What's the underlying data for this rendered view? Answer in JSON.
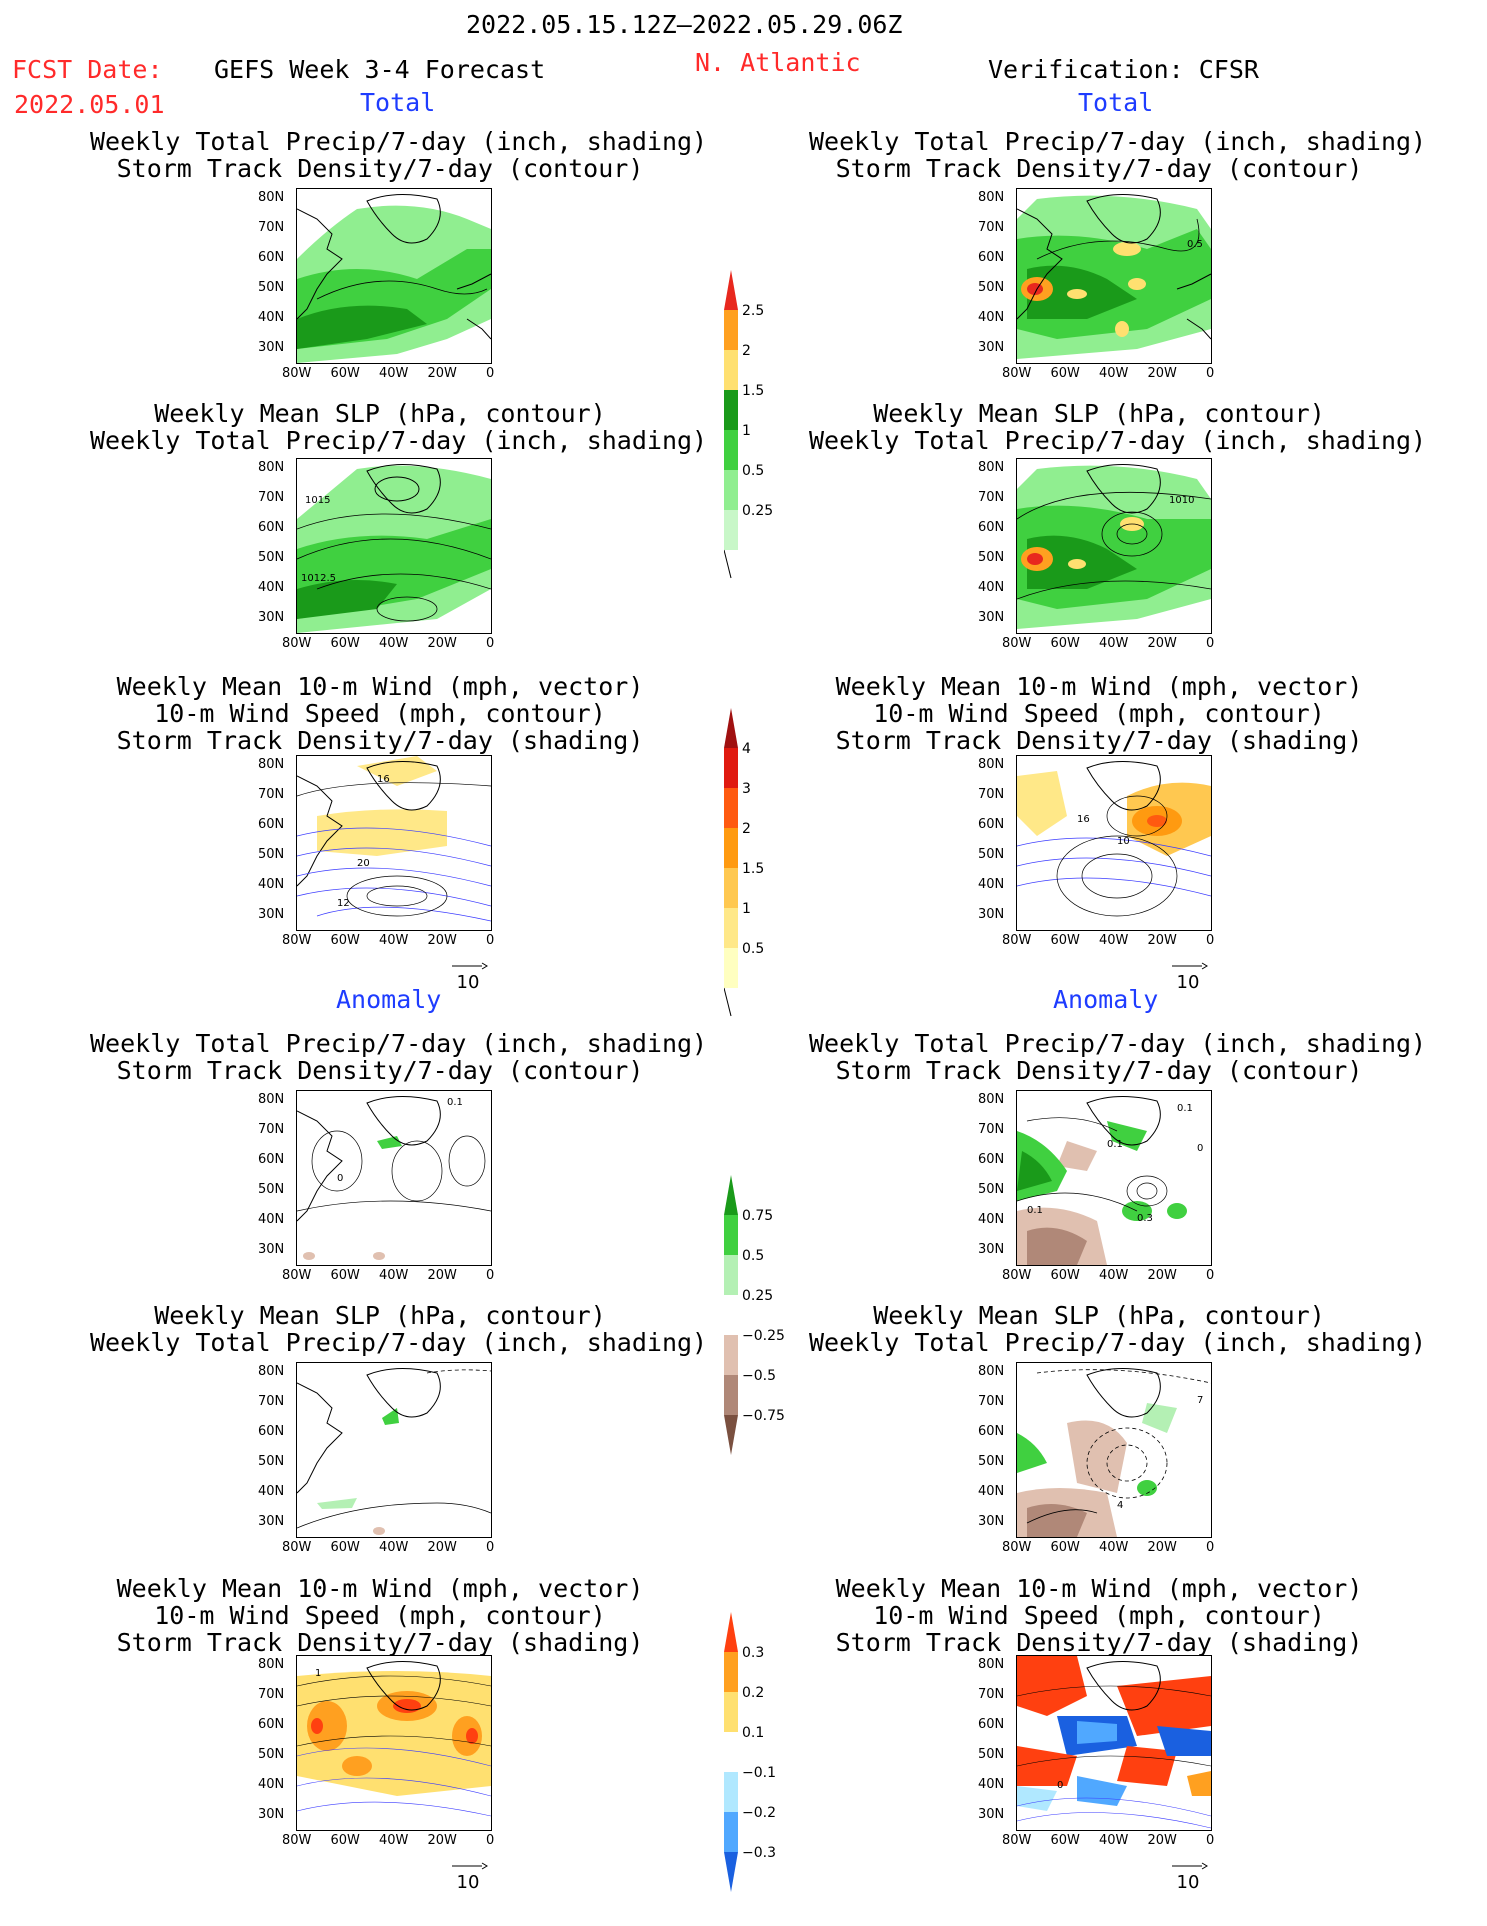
{
  "header": {
    "period": "2022.05.15.12Z–2022.05.29.06Z",
    "fcst_label": "FCST Date:",
    "fcst_date": "2022.05.01",
    "forecast": "GEFS Week 3-4 Forecast",
    "region": "N. Atlantic",
    "verification": "Verification: CFSR",
    "total_label": "Total",
    "anomaly_label": "Anomaly"
  },
  "axes": {
    "lat_ticks": [
      "80N",
      "70N",
      "60N",
      "50N",
      "40N",
      "30N"
    ],
    "lon_ticks": [
      "80W",
      "60W",
      "40W",
      "20W",
      "0"
    ]
  },
  "vector_ref": "10",
  "titles": {
    "precip_storm": [
      "Weekly Total Precip/7-day (inch, shading)",
      "Storm Track Density/7-day (contour)"
    ],
    "slp_precip": [
      "Weekly Mean SLP (hPa, contour)",
      "Weekly Total Precip/7-day (inch, shading)"
    ],
    "wind_storm": [
      "Weekly Mean 10-m Wind (mph, vector)",
      "10-m Wind Speed (mph, contour)",
      "Storm Track Density/7-day (shading)"
    ]
  },
  "contour_labels": {
    "gefs_total_slp": [
      "1015",
      "1012.5"
    ],
    "cfsr_total_precip": [
      "0.5"
    ],
    "cfsr_total_slp": [
      "1010"
    ],
    "gefs_total_wind": [
      "16",
      "20",
      "12"
    ],
    "cfsr_total_wind": [
      "16",
      "10"
    ],
    "gefs_anom_precip": [
      "0.1",
      "0"
    ],
    "cfsr_anom_precip": [
      "0.1",
      "0.1",
      "0",
      "0.3",
      "0.1"
    ],
    "cfsr_anom_slp": [
      "7",
      "4"
    ],
    "gefs_anom_wind": [
      "1"
    ],
    "cfsr_anom_wind": [
      "0"
    ]
  },
  "colorbars": {
    "precip_total": {
      "labels": [
        "2.5",
        "2",
        "1.5",
        "1",
        "0.5",
        "0.25"
      ],
      "colors": [
        "#e8281e",
        "#ffa020",
        "#ffe070",
        "#1a9a1a",
        "#40d040",
        "#90ee90",
        "#c8f7c8"
      ]
    },
    "storm_total": {
      "labels": [
        "4",
        "3",
        "2",
        "1.5",
        "1",
        "0.5"
      ],
      "colors": [
        "#a01010",
        "#e01a10",
        "#ff5a10",
        "#ff9a10",
        "#ffc850",
        "#ffe888",
        "#ffffc0"
      ]
    },
    "precip_anom": {
      "labels": [
        "0.75",
        "0.5",
        "0.25",
        "−0.25",
        "−0.5",
        "−0.75"
      ],
      "colors": [
        "#1a9a1a",
        "#40d040",
        "#b4f0b4",
        "#ffffff",
        "#e0c0b0",
        "#b08878",
        "#7a5040"
      ]
    },
    "storm_anom": {
      "labels": [
        "0.3",
        "0.2",
        "0.1",
        "−0.1",
        "−0.2",
        "−0.3"
      ],
      "colors": [
        "#ff4010",
        "#ffa020",
        "#ffe070",
        "#ffffff",
        "#b0e8ff",
        "#50a8ff",
        "#1a60e0"
      ]
    }
  }
}
